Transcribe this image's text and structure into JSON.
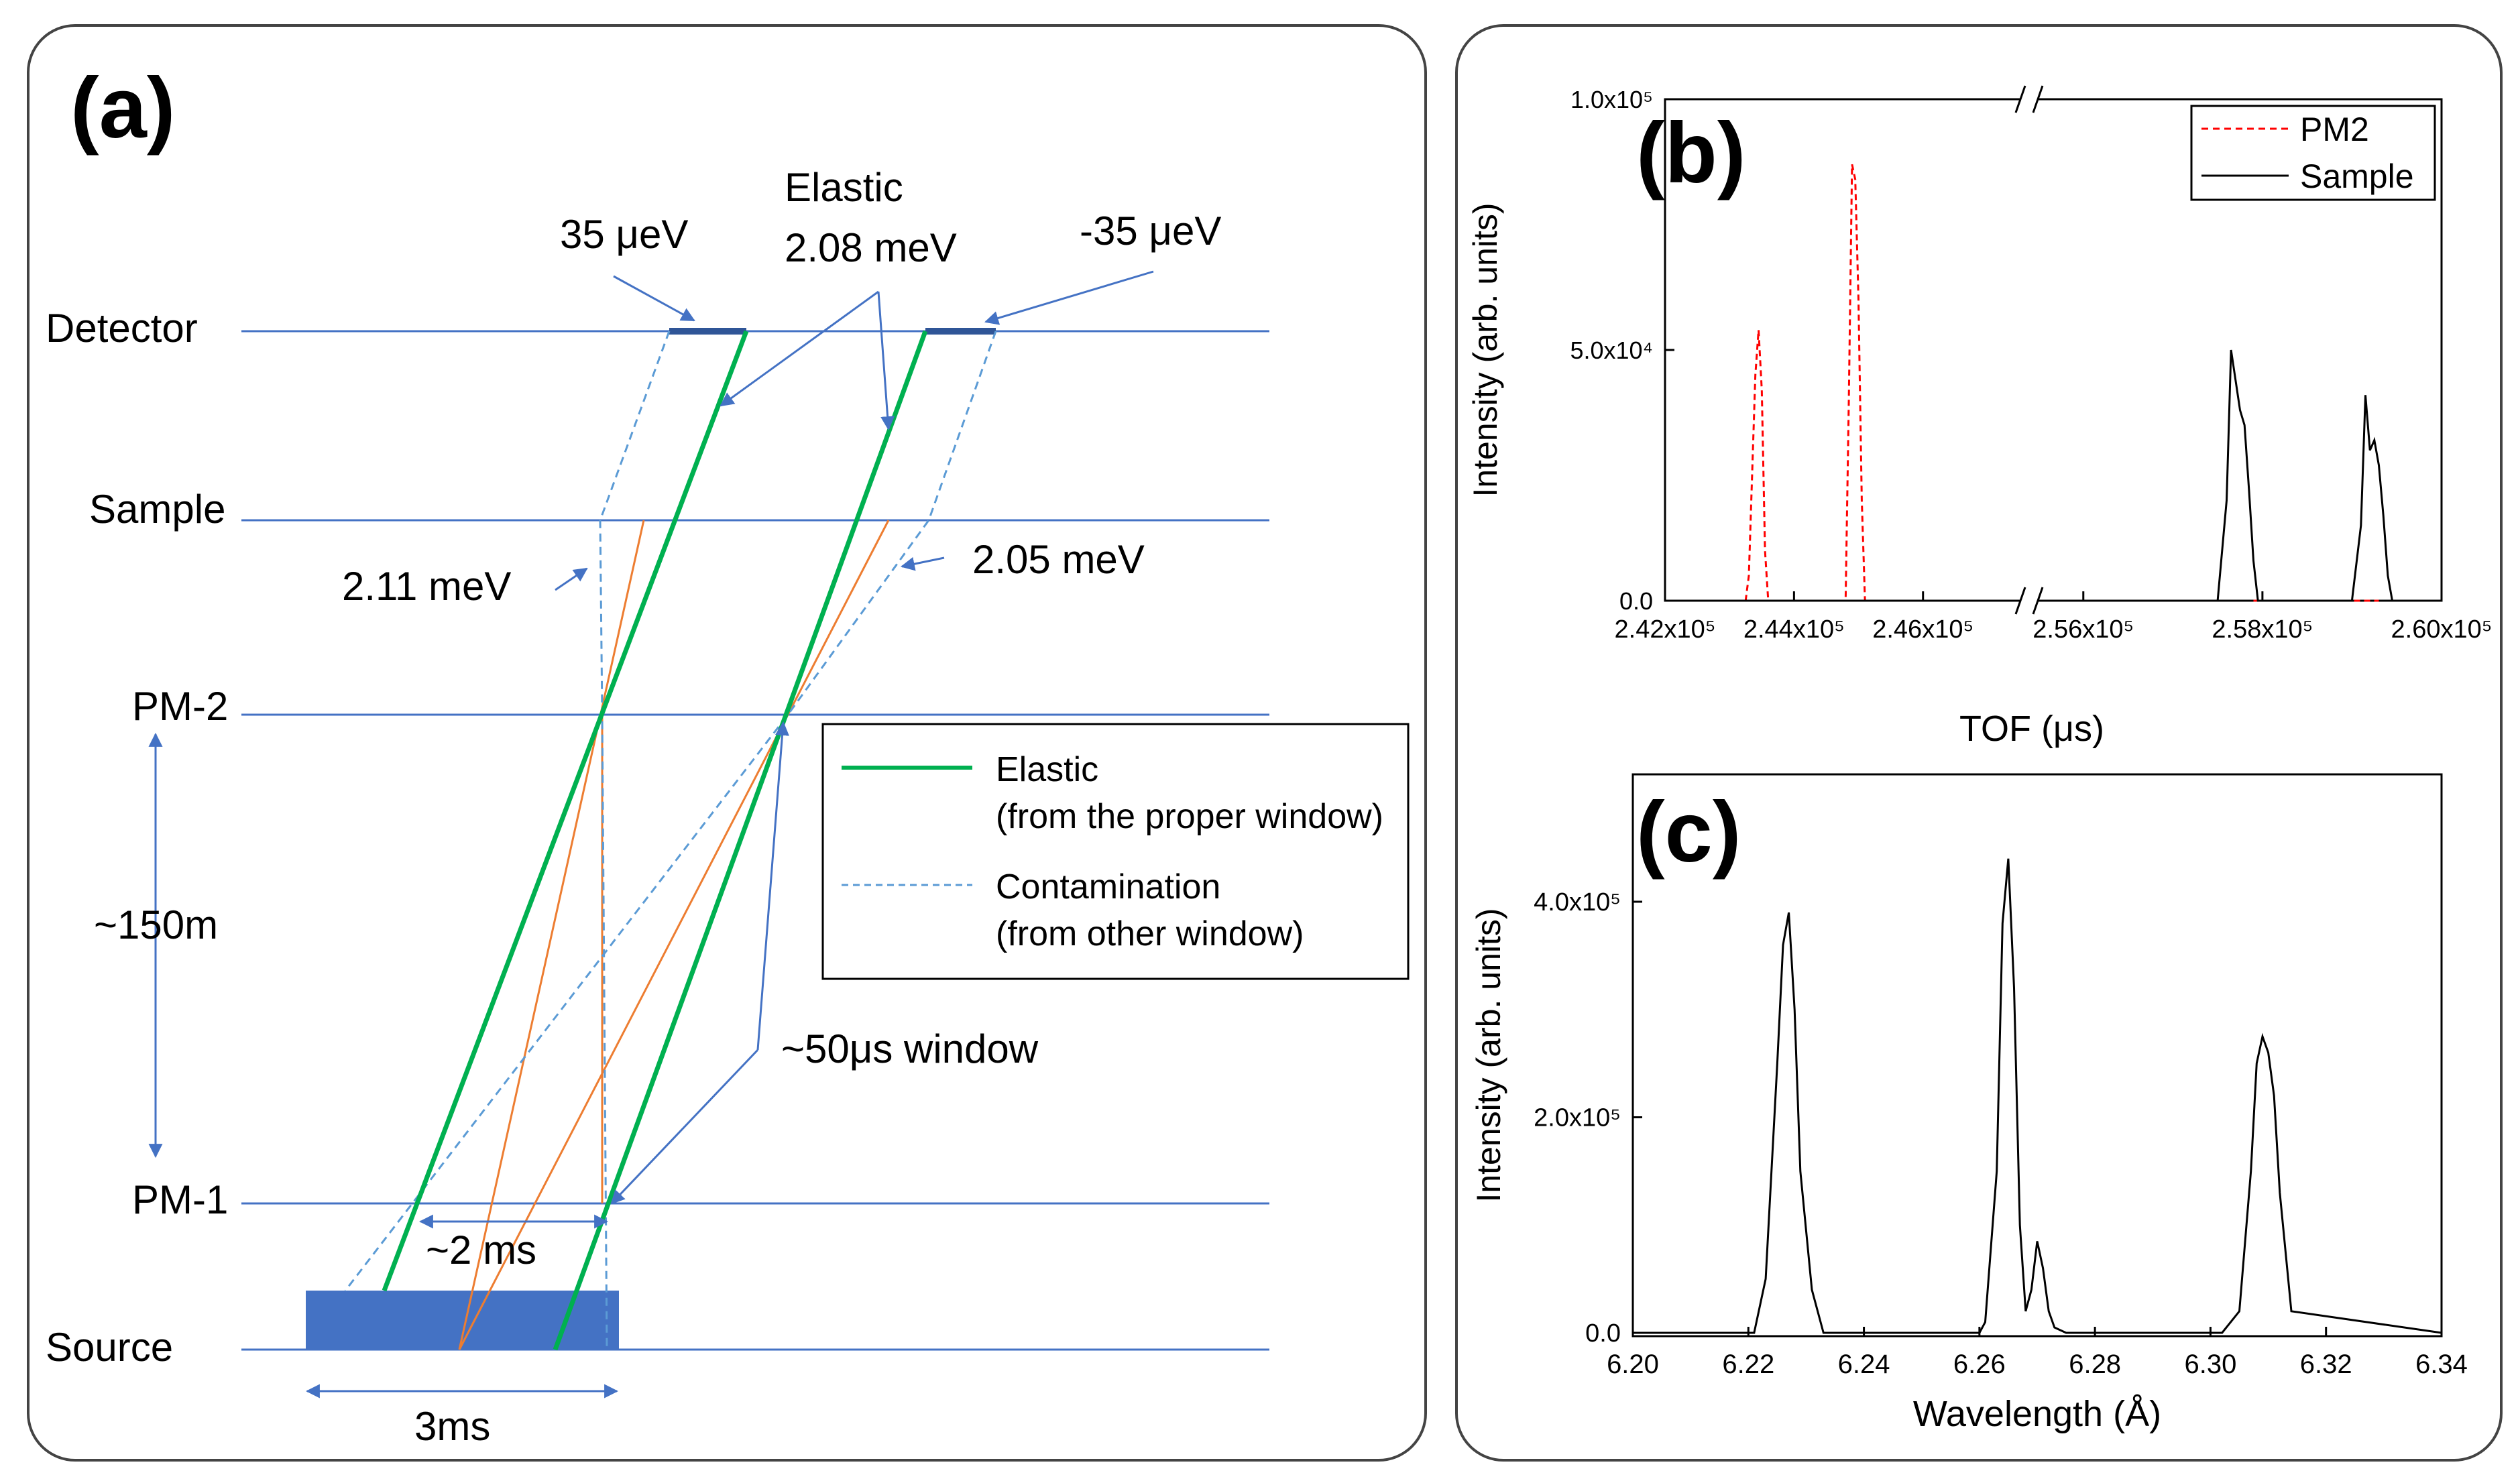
{
  "panel_a": {
    "label": "(a)",
    "levels": {
      "detector": "Detector",
      "sample": "Sample",
      "pm2": "PM-2",
      "pm1": "PM-1",
      "source": "Source"
    },
    "annotations": {
      "plus35": "35 μeV",
      "elastic_line1": "Elastic",
      "elastic_line2": "2.08 meV",
      "minus35": "-35 μeV",
      "e211": "2.11 meV",
      "e205": "2.05 meV",
      "distance": "~150m",
      "window": "~50μs window",
      "pm1_gap": "~2 ms",
      "source_width": "3ms"
    },
    "legend": {
      "elastic_1": "Elastic",
      "elastic_2": "(from the proper window)",
      "contam_1": "Contamination",
      "contam_2": "(from other window)"
    },
    "colors": {
      "level": "#4472c4",
      "elastic": "#00b050",
      "orange": "#ed7d31",
      "contam": "#5b9bd5",
      "source": "#4472c4"
    }
  },
  "chart_data": [
    {
      "panel": "(b)",
      "type": "line",
      "xlabel": "TOF (μs)",
      "ylabel": "Intensity (arb. units)",
      "ylim": [
        0,
        100000
      ],
      "x_axis_break": [
        247500,
        255500
      ],
      "xticks": [
        "2.42x10⁵",
        "2.44x10⁵",
        "2.46x10⁵",
        "2.56x10⁵",
        "2.58x10⁵",
        "2.60x10⁵"
      ],
      "yticks": [
        "0.0",
        "5.0x10⁴",
        "1.0x10⁵"
      ],
      "legend_position": "top-right",
      "series": [
        {
          "name": "PM2",
          "color": "#ff0000",
          "style": "dashed",
          "x": [
            242000,
            243250,
            243300,
            243400,
            243450,
            243500,
            243550,
            243600,
            243700,
            244800,
            244850,
            244900,
            244950,
            245000,
            245050,
            245100,
            245200,
            257900,
            258000,
            259200,
            259300
          ],
          "y": [
            0,
            0,
            5000,
            45000,
            54000,
            42000,
            10000,
            0,
            0,
            0,
            40000,
            87000,
            84000,
            60000,
            20000,
            0,
            0,
            0,
            0,
            0,
            0
          ]
        },
        {
          "name": "Sample",
          "color": "#000000",
          "style": "solid",
          "x": [
            242000,
            247500,
            255500,
            257500,
            257600,
            257650,
            257700,
            257750,
            257800,
            257850,
            257900,
            257950,
            258000,
            259000,
            259100,
            259150,
            259200,
            259250,
            259300,
            259350,
            259400,
            259450,
            259500,
            260000
          ],
          "y": [
            0,
            0,
            0,
            0,
            20000,
            50000,
            44000,
            38000,
            35000,
            22000,
            8000,
            0,
            0,
            0,
            15000,
            41000,
            30000,
            32000,
            27000,
            17000,
            5000,
            0,
            0,
            0
          ]
        }
      ]
    },
    {
      "panel": "(c)",
      "type": "line",
      "xlabel": "Wavelength (Å)",
      "ylabel": "Intensity (arb. units)",
      "xlim": [
        6.2,
        6.34
      ],
      "ylim": [
        0,
        500000
      ],
      "xticks": [
        "6.20",
        "6.22",
        "6.24",
        "6.26",
        "6.28",
        "6.30",
        "6.32",
        "6.34"
      ],
      "yticks": [
        "0.0",
        "2.0x10⁵",
        "4.0x10⁵"
      ],
      "series": [
        {
          "color": "#000000",
          "x": [
            6.2,
            6.221,
            6.223,
            6.225,
            6.226,
            6.227,
            6.228,
            6.229,
            6.231,
            6.233,
            6.26,
            6.261,
            6.263,
            6.264,
            6.265,
            6.266,
            6.267,
            6.268,
            6.269,
            6.27,
            6.271,
            6.272,
            6.273,
            6.275,
            6.302,
            6.305,
            6.307,
            6.308,
            6.309,
            6.31,
            6.311,
            6.312,
            6.314,
            6.34
          ],
          "y": [
            0,
            0,
            50000,
            250000,
            360000,
            390000,
            300000,
            150000,
            40000,
            0,
            0,
            10000,
            150000,
            380000,
            440000,
            320000,
            100000,
            20000,
            40000,
            85000,
            60000,
            20000,
            5000,
            0,
            0,
            20000,
            150000,
            250000,
            275000,
            260000,
            220000,
            130000,
            20000,
            0
          ]
        }
      ]
    }
  ]
}
